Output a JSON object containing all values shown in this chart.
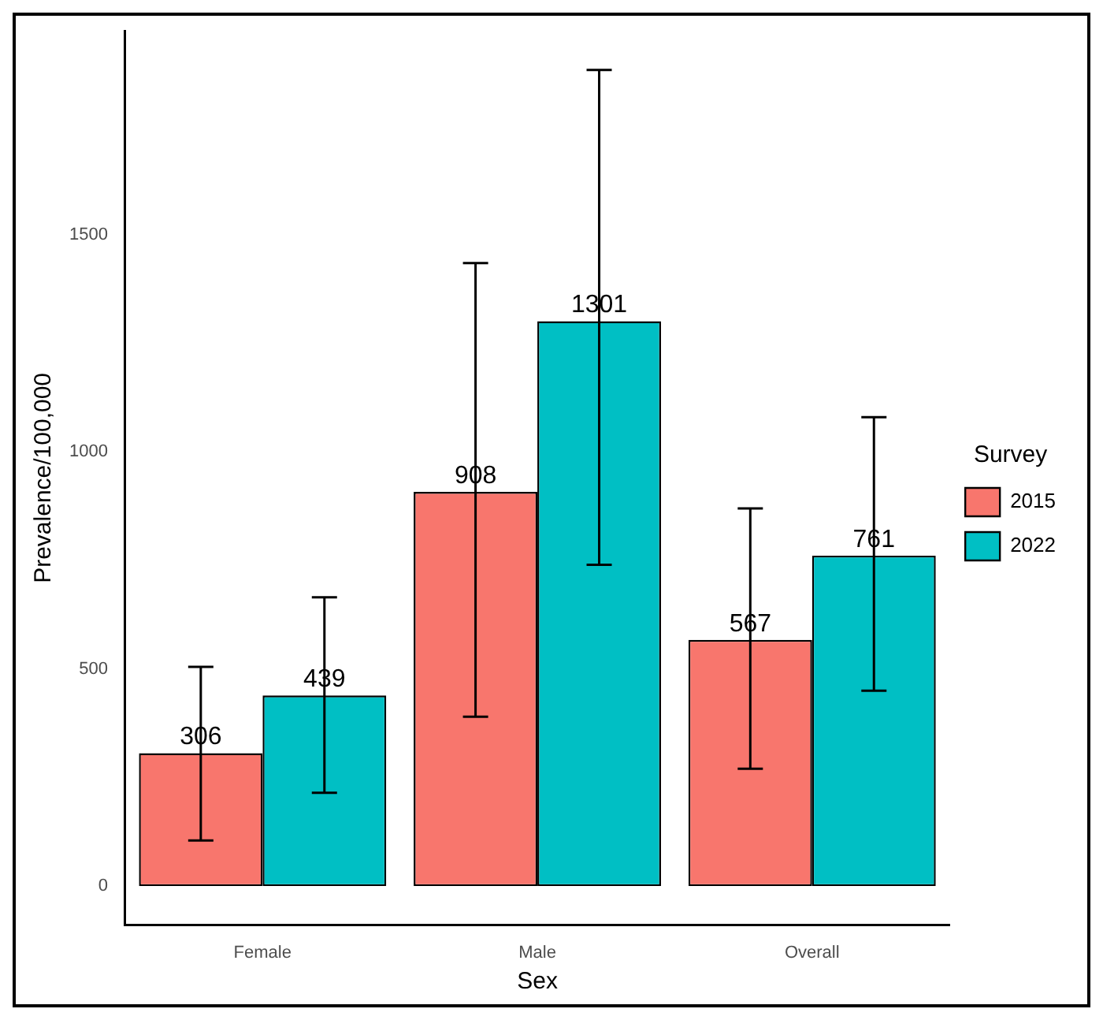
{
  "chart_data": {
    "type": "bar",
    "xlabel": "Sex",
    "ylabel": "Prevalence/100,000",
    "legend_title": "Survey",
    "categories": [
      "Female",
      "Male",
      "Overall"
    ],
    "series": [
      {
        "name": "2015",
        "color": "#f8766d",
        "values": [
          306,
          908,
          567
        ],
        "errors": [
          [
            105,
            505
          ],
          [
            390,
            1435
          ],
          [
            270,
            870
          ]
        ]
      },
      {
        "name": "2022",
        "color": "#00bfc4",
        "values": [
          439,
          1301,
          761
        ],
        "errors": [
          [
            215,
            665
          ],
          [
            740,
            1880
          ],
          [
            450,
            1080
          ]
        ]
      }
    ],
    "ylim": [
      -90,
      1970
    ],
    "yticks": [
      0,
      500,
      1000,
      1500
    ],
    "grid": false,
    "legend": "right",
    "data_labels": true
  }
}
